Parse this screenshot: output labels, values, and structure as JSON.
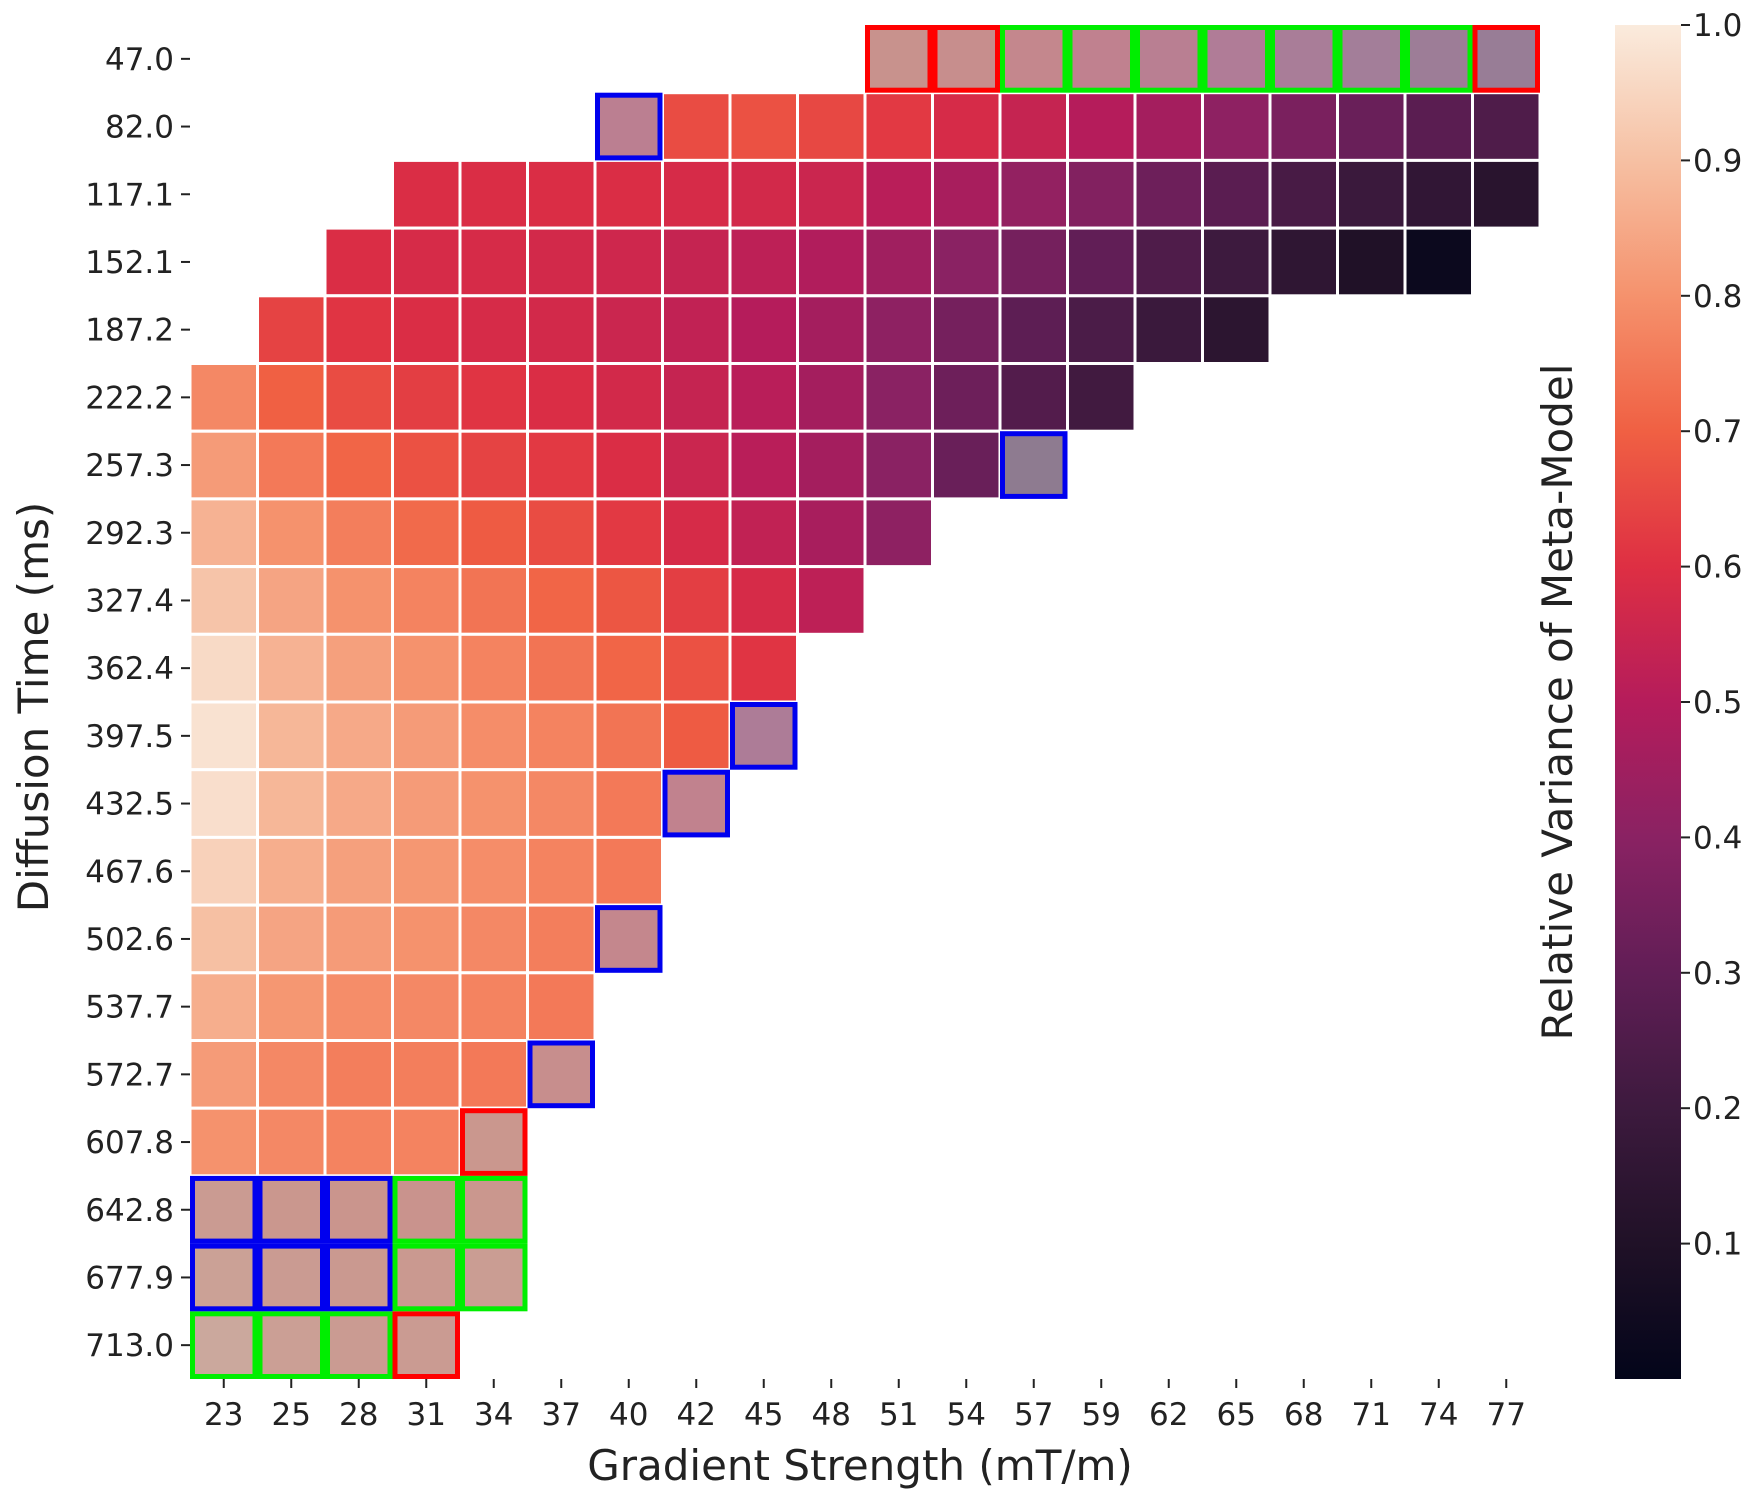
{
  "chart_data": {
    "type": "heatmap",
    "title": "",
    "xlabel": "Gradient Strength (mT/m)",
    "ylabel": "Diffusion Time (ms)",
    "colorbar_label": "Relative Variance of Meta-Model",
    "colormap": "rocket",
    "x_categories": [
      "23",
      "25",
      "28",
      "31",
      "34",
      "37",
      "40",
      "42",
      "45",
      "48",
      "51",
      "54",
      "57",
      "59",
      "62",
      "65",
      "68",
      "71",
      "74",
      "77"
    ],
    "y_categories": [
      "47.0",
      "82.0",
      "117.1",
      "152.1",
      "187.2",
      "222.2",
      "257.3",
      "292.3",
      "327.4",
      "362.4",
      "397.5",
      "432.5",
      "467.6",
      "502.6",
      "537.7",
      "572.7",
      "607.8",
      "642.8",
      "677.9",
      "713.0"
    ],
    "colorbar_ticks": [
      0.1,
      0.2,
      0.3,
      0.4,
      0.5,
      0.6,
      0.7,
      0.8,
      0.9,
      1.0
    ],
    "colorbar_range": [
      0.0,
      1.0
    ],
    "values": [
      [
        null,
        null,
        null,
        null,
        null,
        null,
        null,
        null,
        null,
        null,
        0.68,
        0.66,
        0.62,
        0.58,
        0.54,
        0.48,
        0.44,
        0.4,
        0.36,
        0.33
      ],
      [
        null,
        null,
        null,
        null,
        null,
        null,
        0.55,
        0.66,
        0.67,
        0.65,
        0.62,
        0.58,
        0.54,
        0.5,
        0.46,
        0.41,
        0.36,
        0.32,
        0.28,
        0.25
      ],
      [
        null,
        null,
        null,
        0.59,
        0.59,
        0.59,
        0.59,
        0.58,
        0.57,
        0.55,
        0.51,
        0.47,
        0.42,
        0.38,
        0.33,
        0.28,
        0.23,
        0.19,
        0.16,
        0.13
      ],
      [
        null,
        null,
        0.59,
        0.58,
        0.58,
        0.57,
        0.56,
        0.54,
        0.52,
        0.49,
        0.45,
        0.4,
        0.35,
        0.3,
        0.25,
        0.2,
        0.15,
        0.1,
        0.03,
        null
      ],
      [
        null,
        0.64,
        0.61,
        0.59,
        0.58,
        0.57,
        0.55,
        0.53,
        0.5,
        0.46,
        0.41,
        0.35,
        0.29,
        0.24,
        0.19,
        0.14,
        null,
        null,
        null,
        null
      ],
      [
        0.78,
        0.7,
        0.66,
        0.63,
        0.61,
        0.59,
        0.57,
        0.54,
        0.51,
        0.46,
        0.4,
        0.33,
        0.26,
        0.21,
        null,
        null,
        null,
        null,
        null,
        null
      ],
      [
        0.82,
        0.75,
        0.71,
        0.67,
        0.64,
        0.62,
        0.59,
        0.55,
        0.51,
        0.46,
        0.4,
        0.32,
        0.26,
        null,
        null,
        null,
        null,
        null,
        null,
        null
      ],
      [
        0.87,
        0.8,
        0.76,
        0.72,
        0.69,
        0.66,
        0.62,
        0.58,
        0.53,
        0.47,
        0.41,
        null,
        null,
        null,
        null,
        null,
        null,
        null,
        null,
        null
      ],
      [
        0.91,
        0.84,
        0.8,
        0.77,
        0.74,
        0.71,
        0.68,
        0.63,
        0.58,
        0.52,
        null,
        null,
        null,
        null,
        null,
        null,
        null,
        null,
        null,
        null
      ],
      [
        0.96,
        0.87,
        0.83,
        0.8,
        0.77,
        0.74,
        0.71,
        0.67,
        0.61,
        null,
        null,
        null,
        null,
        null,
        null,
        null,
        null,
        null,
        null,
        null
      ],
      [
        0.98,
        0.88,
        0.85,
        0.82,
        0.79,
        0.77,
        0.74,
        0.69,
        0.46,
        null,
        null,
        null,
        null,
        null,
        null,
        null,
        null,
        null,
        null,
        null
      ],
      [
        0.97,
        0.88,
        0.85,
        0.82,
        0.8,
        0.78,
        0.75,
        0.59,
        null,
        null,
        null,
        null,
        null,
        null,
        null,
        null,
        null,
        null,
        null,
        null
      ],
      [
        0.94,
        0.86,
        0.83,
        0.81,
        0.79,
        0.77,
        0.75,
        null,
        null,
        null,
        null,
        null,
        null,
        null,
        null,
        null,
        null,
        null,
        null,
        null
      ],
      [
        0.9,
        0.84,
        0.82,
        0.8,
        0.78,
        0.76,
        0.62,
        null,
        null,
        null,
        null,
        null,
        null,
        null,
        null,
        null,
        null,
        null,
        null,
        null
      ],
      [
        0.86,
        0.81,
        0.79,
        0.78,
        0.77,
        0.75,
        null,
        null,
        null,
        null,
        null,
        null,
        null,
        null,
        null,
        null,
        null,
        null,
        null,
        null
      ],
      [
        0.82,
        0.78,
        0.76,
        0.76,
        0.75,
        0.66,
        null,
        null,
        null,
        null,
        null,
        null,
        null,
        null,
        null,
        null,
        null,
        null,
        null,
        null
      ],
      [
        0.8,
        0.78,
        0.77,
        0.77,
        0.71,
        null,
        null,
        null,
        null,
        null,
        null,
        null,
        null,
        null,
        null,
        null,
        null,
        null,
        null,
        null
      ],
      [
        0.73,
        0.71,
        0.7,
        0.69,
        0.71,
        null,
        null,
        null,
        null,
        null,
        null,
        null,
        null,
        null,
        null,
        null,
        null,
        null,
        null,
        null
      ],
      [
        0.76,
        0.73,
        0.72,
        0.72,
        0.74,
        null,
        null,
        null,
        null,
        null,
        null,
        null,
        null,
        null,
        null,
        null,
        null,
        null,
        null,
        null
      ],
      [
        0.8,
        0.75,
        0.73,
        0.73,
        null,
        null,
        null,
        null,
        null,
        null,
        null,
        null,
        null,
        null,
        null,
        null,
        null,
        null,
        null,
        null
      ]
    ],
    "greyed_cells": [
      [
        0,
        10
      ],
      [
        0,
        11
      ],
      [
        0,
        12
      ],
      [
        0,
        13
      ],
      [
        0,
        14
      ],
      [
        0,
        15
      ],
      [
        0,
        16
      ],
      [
        0,
        17
      ],
      [
        0,
        18
      ],
      [
        0,
        19
      ],
      [
        1,
        6
      ],
      [
        6,
        12
      ],
      [
        10,
        8
      ],
      [
        11,
        7
      ],
      [
        13,
        6
      ],
      [
        15,
        5
      ],
      [
        16,
        4
      ],
      [
        17,
        0
      ],
      [
        17,
        1
      ],
      [
        17,
        2
      ],
      [
        17,
        3
      ],
      [
        17,
        4
      ],
      [
        18,
        0
      ],
      [
        18,
        1
      ],
      [
        18,
        2
      ],
      [
        18,
        3
      ],
      [
        18,
        4
      ],
      [
        19,
        0
      ],
      [
        19,
        1
      ],
      [
        19,
        2
      ],
      [
        19,
        3
      ]
    ],
    "highlights": [
      {
        "color": "#ff0000",
        "cells": [
          [
            0,
            10
          ],
          [
            0,
            11
          ],
          [
            0,
            19
          ],
          [
            16,
            4
          ],
          [
            19,
            3
          ]
        ]
      },
      {
        "color": "#00ee00",
        "cells": [
          [
            0,
            12
          ],
          [
            0,
            13
          ],
          [
            0,
            14
          ],
          [
            0,
            15
          ],
          [
            0,
            16
          ],
          [
            0,
            17
          ],
          [
            0,
            18
          ],
          [
            17,
            3
          ],
          [
            17,
            4
          ],
          [
            18,
            3
          ],
          [
            18,
            4
          ],
          [
            19,
            0
          ],
          [
            19,
            1
          ],
          [
            19,
            2
          ]
        ]
      },
      {
        "color": "#0000ee",
        "cells": [
          [
            1,
            6
          ],
          [
            6,
            12
          ],
          [
            10,
            8
          ],
          [
            11,
            7
          ],
          [
            13,
            6
          ],
          [
            15,
            5
          ],
          [
            17,
            0
          ],
          [
            17,
            1
          ],
          [
            17,
            2
          ],
          [
            18,
            0
          ],
          [
            18,
            1
          ],
          [
            18,
            2
          ]
        ]
      }
    ]
  }
}
